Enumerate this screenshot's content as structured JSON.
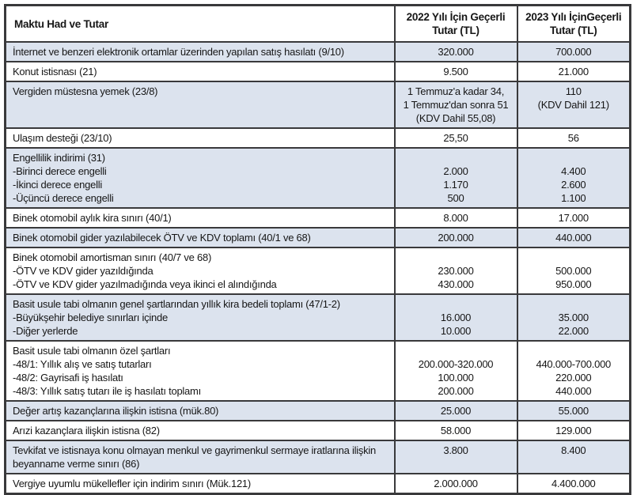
{
  "colors": {
    "row_shade": "#dce3ee",
    "border": "#39393b",
    "text": "#161616",
    "row_plain": "#ffffff"
  },
  "table": {
    "header": {
      "col1": "Maktu Had ve Tutar",
      "col2_line1": "2022 Yılı İçin Geçerli",
      "col2_line2": "Tutar (TL)",
      "col3_line1": "2023 Yılı İçinGeçerli",
      "col3_line2": "Tutar (TL)"
    },
    "rows": [
      {
        "shaded": true,
        "label_lines": [
          "İnternet ve benzeri elektronik ortamlar üzerinden yapılan satış hasılatı (9/10)"
        ],
        "values_2022": [
          "320.000"
        ],
        "values_2023": [
          "700.000"
        ]
      },
      {
        "shaded": false,
        "label_lines": [
          "Konut istisnası (21)"
        ],
        "values_2022": [
          "9.500"
        ],
        "values_2023": [
          "21.000"
        ]
      },
      {
        "shaded": true,
        "label_lines": [
          "Vergiden müstesna yemek (23/8)"
        ],
        "values_2022": [
          "1 Temmuz'a kadar 34,",
          "1 Temmuz'dan sonra 51",
          "(KDV Dahil 55,08)"
        ],
        "values_2023": [
          "110",
          "(KDV Dahil 121)"
        ]
      },
      {
        "shaded": false,
        "label_lines": [
          "Ulaşım desteği (23/10)"
        ],
        "values_2022": [
          "25,50"
        ],
        "values_2023": [
          "56"
        ]
      },
      {
        "shaded": true,
        "label_lines": [
          "Engellilik indirimi (31)",
          "-Birinci derece engelli",
          "-İkinci derece engelli",
          "-Üçüncü derece engelli"
        ],
        "values_2022": [
          "",
          "2.000",
          "1.170",
          "500"
        ],
        "values_2023": [
          "",
          "4.400",
          "2.600",
          "1.100"
        ]
      },
      {
        "shaded": false,
        "label_lines": [
          "Binek otomobil aylık kira sınırı (40/1)"
        ],
        "values_2022": [
          "8.000"
        ],
        "values_2023": [
          "17.000"
        ]
      },
      {
        "shaded": true,
        "label_lines": [
          "Binek otomobil gider yazılabilecek ÖTV ve KDV toplamı (40/1 ve 68)"
        ],
        "values_2022": [
          "200.000"
        ],
        "values_2023": [
          "440.000"
        ]
      },
      {
        "shaded": false,
        "label_lines": [
          "Binek otomobil amortisman sınırı (40/7 ve 68)",
          "-ÖTV ve KDV gider yazıldığında",
          "-ÖTV ve KDV gider yazılmadığında veya ikinci el alındığında"
        ],
        "values_2022": [
          "",
          "230.000",
          "430.000"
        ],
        "values_2023": [
          "",
          "500.000",
          "950.000"
        ]
      },
      {
        "shaded": true,
        "label_lines": [
          "Basit usule tabi olmanın genel şartlarından yıllık kira bedeli toplamı (47/1-2)",
          "-Büyükşehir belediye sınırları içinde",
          "-Diğer yerlerde"
        ],
        "values_2022": [
          "",
          "16.000",
          "10.000"
        ],
        "values_2023": [
          "",
          "35.000",
          "22.000"
        ]
      },
      {
        "shaded": false,
        "label_lines": [
          "Basit usule tabi olmanın özel şartları",
          "-48/1: Yıllık alış ve satış tutarları",
          "-48/2: Gayrisafi iş hasılatı",
          "-48/3: Yıllık satış tutarı ile iş hasılatı toplamı"
        ],
        "values_2022": [
          "",
          "200.000-320.000",
          "100.000",
          "200.000"
        ],
        "values_2023": [
          "",
          "440.000-700.000",
          "220.000",
          "440.000"
        ]
      },
      {
        "shaded": true,
        "label_lines": [
          "Değer artış kazançlarına ilişkin istisna (mük.80)"
        ],
        "values_2022": [
          "25.000"
        ],
        "values_2023": [
          "55.000"
        ]
      },
      {
        "shaded": false,
        "label_lines": [
          "Arızi kazançlara ilişkin istisna (82)"
        ],
        "values_2022": [
          "58.000"
        ],
        "values_2023": [
          "129.000"
        ]
      },
      {
        "shaded": true,
        "label_lines": [
          "Tevkifat ve istisnaya konu olmayan menkul ve gayrimenkul sermaye iratlarına ilişkin beyanname verme sınırı (86)"
        ],
        "values_2022": [
          "3.800"
        ],
        "values_2023": [
          "8.400"
        ]
      },
      {
        "shaded": false,
        "label_lines": [
          "Vergiye uyumlu mükellefler için indirim sınırı (Mük.121)"
        ],
        "values_2022": [
          "2.000.000"
        ],
        "values_2023": [
          "4.400.000"
        ]
      }
    ]
  }
}
